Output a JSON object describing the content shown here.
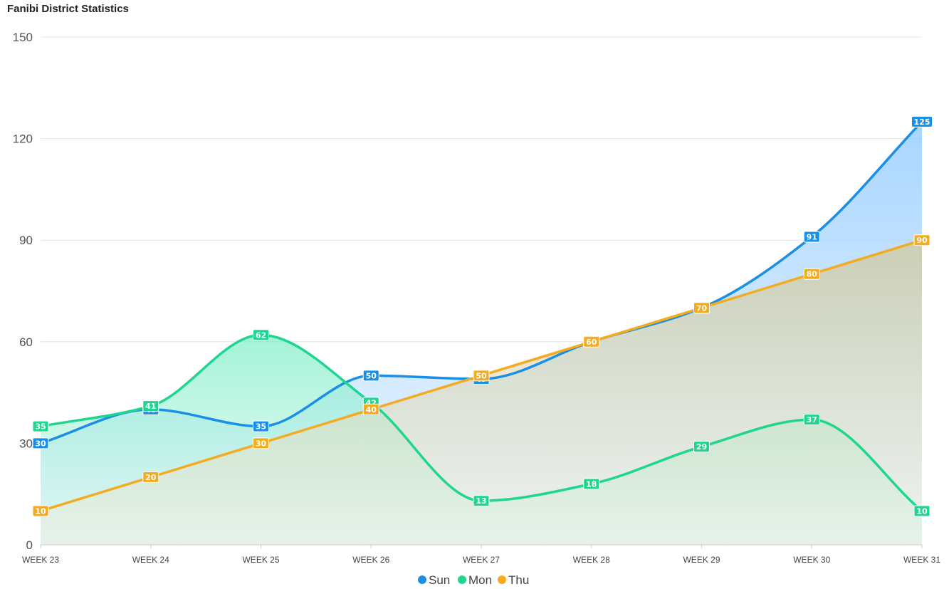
{
  "chart_data": {
    "type": "area",
    "title": "Fanibi District Statistics",
    "categories": [
      "WEEK 23",
      "WEEK 24",
      "WEEK 25",
      "WEEK 26",
      "WEEK 27",
      "WEEK 28",
      "WEEK 29",
      "WEEK 30",
      "WEEK 31"
    ],
    "ylim": [
      0,
      150
    ],
    "yticks": [
      0,
      30,
      60,
      90,
      120,
      150
    ],
    "grid": true,
    "legend_position": "bottom-center",
    "series": [
      {
        "name": "Sun",
        "color": "#1a8fe8",
        "values": [
          30,
          40,
          35,
          50,
          49,
          60,
          70,
          91,
          125
        ]
      },
      {
        "name": "Mon",
        "color": "#1fd68f",
        "values": [
          35,
          41,
          62,
          42,
          13,
          18,
          29,
          37,
          10
        ]
      },
      {
        "name": "Thu",
        "color": "#f5ab1f",
        "values": [
          10,
          20,
          30,
          40,
          50,
          60,
          70,
          80,
          90
        ]
      }
    ]
  }
}
